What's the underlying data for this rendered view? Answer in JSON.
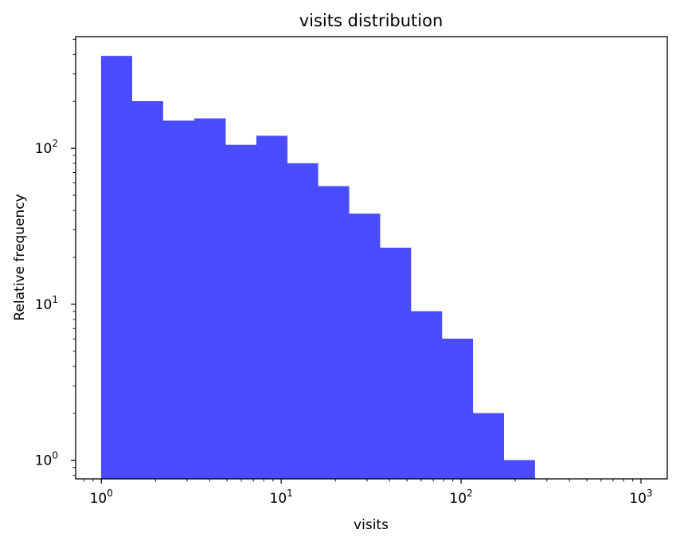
{
  "chart_data": {
    "type": "bar",
    "title": "visits distribution",
    "xlabel": "visits",
    "ylabel": "Relative frequency",
    "x_scale": "log",
    "y_scale": "log",
    "xlim": [
      0.72,
      1400
    ],
    "ylim": [
      0.76,
      520
    ],
    "bar_color": "#4b4bff",
    "grid": false,
    "legend": "none",
    "x_ticks": [
      {
        "value": 1,
        "base": "10",
        "exp": "0"
      },
      {
        "value": 10,
        "base": "10",
        "exp": "1"
      },
      {
        "value": 100,
        "base": "10",
        "exp": "2"
      },
      {
        "value": 1000,
        "base": "10",
        "exp": "3"
      }
    ],
    "y_ticks": [
      {
        "value": 1,
        "base": "10",
        "exp": "0"
      },
      {
        "value": 10,
        "base": "10",
        "exp": "1"
      },
      {
        "value": 100,
        "base": "10",
        "exp": "2"
      }
    ],
    "bins": [
      {
        "x0": 1.0,
        "x1": 1.48,
        "value": 390
      },
      {
        "x0": 1.48,
        "x1": 2.2,
        "value": 200
      },
      {
        "x0": 2.2,
        "x1": 3.3,
        "value": 150
      },
      {
        "x0": 3.3,
        "x1": 4.9,
        "value": 155
      },
      {
        "x0": 4.9,
        "x1": 7.3,
        "value": 105
      },
      {
        "x0": 7.3,
        "x1": 10.8,
        "value": 120
      },
      {
        "x0": 10.8,
        "x1": 16.0,
        "value": 80
      },
      {
        "x0": 16.0,
        "x1": 23.8,
        "value": 57
      },
      {
        "x0": 23.8,
        "x1": 35.4,
        "value": 38
      },
      {
        "x0": 35.4,
        "x1": 52.6,
        "value": 23
      },
      {
        "x0": 52.6,
        "x1": 78.2,
        "value": 9
      },
      {
        "x0": 78.2,
        "x1": 116.2,
        "value": 6
      },
      {
        "x0": 116.2,
        "x1": 172.7,
        "value": 2
      },
      {
        "x0": 172.7,
        "x1": 256.7,
        "value": 1
      }
    ]
  }
}
